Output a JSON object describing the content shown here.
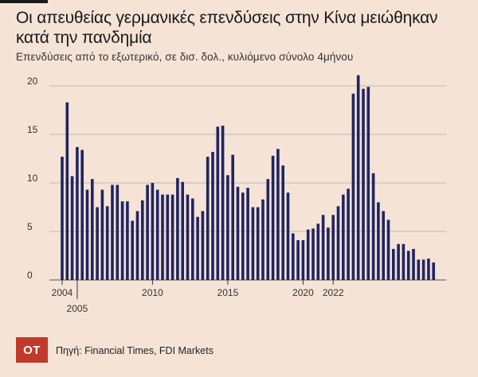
{
  "header": {
    "title": "Οι απευθείας γερμανικές επενδύσεις στην Κίνα μειώθηκαν κατά την πανδημία",
    "subtitle": "Επενδύσεις από το εξωτερικό, σε δισ. δολ., κυλιόμενο σύνολο 4μήνου"
  },
  "footer": {
    "logo": "ΟΤ",
    "source": "Πηγή: Financial Times, FDI Markets"
  },
  "colors": {
    "bar": "#1f2563",
    "grid": "#aaaaaa",
    "background": "#f5e3d6",
    "logo": "#c0392b"
  },
  "chart_data": {
    "type": "bar",
    "title": "Οι απευθείας γερμανικές επενδύσεις στην Κίνα μειώθηκαν κατά την πανδημία",
    "subtitle": "Επενδύσεις από το εξωτερικό, σε δισ. δολ., κυλιόμενο σύνολο 4μήνου",
    "ylim": [
      0,
      21
    ],
    "yticks": [
      0,
      5,
      10,
      15,
      20
    ],
    "grid": true,
    "x_tick_labels": [
      {
        "label": "2004",
        "index": 0
      },
      {
        "label": "2005",
        "index": 3
      },
      {
        "label": "2010",
        "index": 18
      },
      {
        "label": "2015",
        "index": 33
      },
      {
        "label": "2020",
        "index": 48
      },
      {
        "label": "2022",
        "index": 54
      }
    ],
    "values": [
      12.7,
      18.3,
      10.7,
      13.7,
      13.4,
      9.3,
      10.4,
      7.5,
      9.3,
      7.6,
      9.8,
      9.8,
      8.1,
      8.1,
      6.1,
      7.1,
      8.2,
      9.8,
      10.0,
      9.3,
      8.8,
      8.8,
      8.8,
      10.5,
      10.1,
      8.8,
      8.4,
      6.5,
      7.1,
      12.7,
      13.2,
      15.8,
      15.9,
      10.8,
      12.9,
      9.6,
      9.0,
      9.5,
      7.5,
      7.5,
      8.3,
      10.4,
      12.8,
      13.5,
      11.8,
      9.0,
      4.8,
      4.1,
      4.1,
      5.2,
      5.3,
      5.8,
      6.7,
      5.4,
      6.7,
      7.6,
      8.8,
      9.4,
      19.2,
      21.1,
      19.7,
      19.9,
      11.0,
      8.0,
      7.1,
      6.2,
      3.2,
      3.7,
      3.7,
      3.0,
      3.2,
      2.1,
      2.1,
      2.2,
      1.8
    ]
  }
}
